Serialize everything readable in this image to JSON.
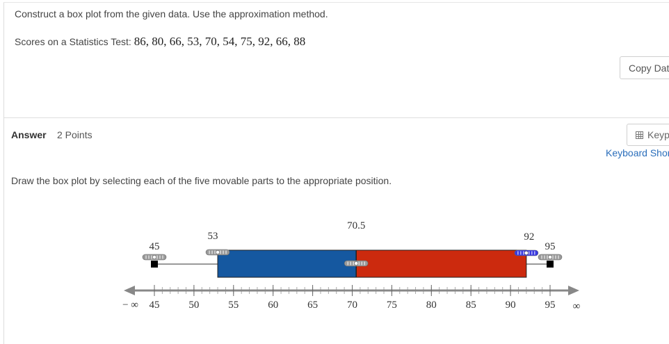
{
  "question": {
    "prompt": "Construct a box plot from the given data. Use the approximation method.",
    "data_label": "Scores on a Statistics Test: ",
    "data_values": "86, 80, 66, 53, 70, 54, 75, 92, 66, 88"
  },
  "toolbar": {
    "copy_label": "Copy Data",
    "keypad_label": "Keypad",
    "keyboard_shortcuts_label": "Keyboard Shortcuts"
  },
  "answer": {
    "label": "Answer",
    "points": "2 Points",
    "instruction": "Draw the box plot by selecting each of the five movable parts to the appropriate position."
  },
  "boxplot": {
    "min": 45,
    "q1": 53,
    "median": 70.5,
    "q3": 92,
    "max": 95,
    "min_label": "45",
    "q1_label": "53",
    "median_label": "70.5",
    "q3_label": "92",
    "max_label": "95",
    "left_color": "#1558a0",
    "right_color": "#cc2a0e",
    "selected_handle_color": "#3a3ae0"
  },
  "axis": {
    "start": 45,
    "end": 95,
    "tick_labels": [
      "45",
      "50",
      "55",
      "60",
      "65",
      "70",
      "75",
      "80",
      "85",
      "90",
      "95"
    ],
    "neg_inf_label": "− ∞",
    "pos_inf_label": "∞"
  }
}
